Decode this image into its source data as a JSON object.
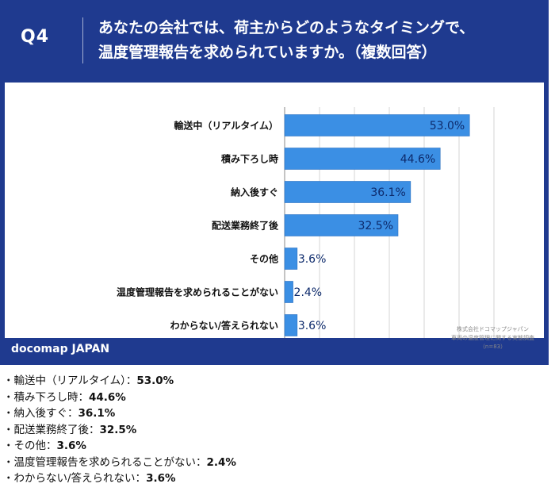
{
  "question": {
    "number": "Q4",
    "title_line1": "あなたの会社では、荷主からどのようなタイミングで、",
    "title_line2": "温度管理報告を求められていますか。（複数回答）"
  },
  "brand": "docomap JAPAN",
  "source": {
    "line1": "株式会社ドコマップジャパン",
    "line2": "車両の温度管理に関する実態調査",
    "line3": "（n=83）"
  },
  "colors": {
    "header": "#1f3a8f",
    "bar": "#3b8fe4",
    "bar_edge": "#2a6fc0"
  },
  "chart_data": {
    "type": "bar",
    "orientation": "horizontal",
    "categories": [
      "輸送中（リアルタイム）",
      "積み下ろし時",
      "納入後すぐ",
      "配送業務終了後",
      "その他",
      "温度管理報告を求められることがない",
      "わからない/答えられない"
    ],
    "values": [
      53.0,
      44.6,
      36.1,
      32.5,
      3.6,
      2.4,
      3.6
    ],
    "value_labels": [
      "53.0%",
      "44.6%",
      "36.1%",
      "32.5%",
      "3.6%",
      "2.4%",
      "3.6%"
    ],
    "xlim": [
      0,
      60
    ],
    "grid": true
  },
  "list": [
    {
      "prefix": "・輸送中（リアルタイム）：",
      "value": "53.0%"
    },
    {
      "prefix": "・積み下ろし時：",
      "value": "44.6%"
    },
    {
      "prefix": "・納入後すぐ：",
      "value": "36.1%"
    },
    {
      "prefix": "・配送業務終了後：",
      "value": "32.5%"
    },
    {
      "prefix": "・その他：",
      "value": "3.6%"
    },
    {
      "prefix": "・温度管理報告を求められることがない：",
      "value": "2.4%"
    },
    {
      "prefix": "・わからない/答えられない：",
      "value": "3.6%"
    }
  ]
}
